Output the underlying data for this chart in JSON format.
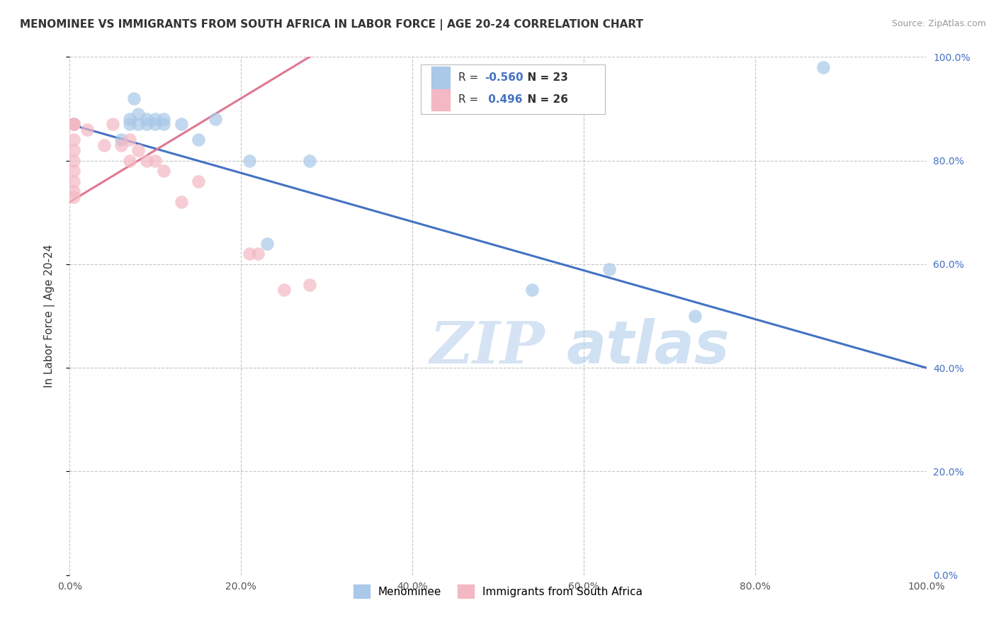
{
  "title": "MENOMINEE VS IMMIGRANTS FROM SOUTH AFRICA IN LABOR FORCE | AGE 20-24 CORRELATION CHART",
  "source": "Source: ZipAtlas.com",
  "ylabel": "In Labor Force | Age 20-24",
  "watermark_zip": "ZIP",
  "watermark_atlas": "atlas",
  "xlim": [
    0.0,
    1.0
  ],
  "ylim": [
    0.0,
    1.0
  ],
  "x_ticks": [
    0.0,
    0.2,
    0.4,
    0.6,
    0.8,
    1.0
  ],
  "y_ticks": [
    0.0,
    0.2,
    0.4,
    0.6,
    0.8,
    1.0
  ],
  "menominee_color": "#a8c8e8",
  "south_africa_color": "#f4b8c4",
  "blue_line_color": "#4472c4",
  "pink_line_color": "#e07890",
  "menominee_R": -0.56,
  "menominee_N": 23,
  "south_africa_R": 0.496,
  "south_africa_N": 26,
  "menominee_x": [
    0.005,
    0.06,
    0.07,
    0.07,
    0.075,
    0.08,
    0.08,
    0.09,
    0.09,
    0.1,
    0.1,
    0.11,
    0.11,
    0.13,
    0.15,
    0.17,
    0.21,
    0.23,
    0.28,
    0.54,
    0.63,
    0.73,
    0.88
  ],
  "menominee_y": [
    0.87,
    0.84,
    0.87,
    0.88,
    0.92,
    0.87,
    0.89,
    0.87,
    0.88,
    0.87,
    0.88,
    0.87,
    0.88,
    0.87,
    0.84,
    0.88,
    0.8,
    0.64,
    0.8,
    0.55,
    0.59,
    0.5,
    0.98
  ],
  "south_africa_x": [
    0.005,
    0.005,
    0.005,
    0.005,
    0.005,
    0.005,
    0.005,
    0.005,
    0.005,
    0.005,
    0.02,
    0.04,
    0.05,
    0.06,
    0.07,
    0.07,
    0.08,
    0.09,
    0.1,
    0.11,
    0.13,
    0.15,
    0.21,
    0.22,
    0.25,
    0.28
  ],
  "south_africa_y": [
    0.87,
    0.87,
    0.87,
    0.84,
    0.82,
    0.8,
    0.78,
    0.76,
    0.74,
    0.73,
    0.86,
    0.83,
    0.87,
    0.83,
    0.84,
    0.8,
    0.82,
    0.8,
    0.8,
    0.78,
    0.72,
    0.76,
    0.62,
    0.62,
    0.55,
    0.56
  ],
  "blue_line_x0": 0.0,
  "blue_line_y0": 0.87,
  "blue_line_x1": 1.0,
  "blue_line_y1": 0.4,
  "pink_line_x0": 0.0,
  "pink_line_y0": 0.72,
  "pink_line_x1": 0.3,
  "pink_line_y1": 1.02,
  "background_color": "#ffffff",
  "grid_color": "#c0c0c0",
  "title_fontsize": 11,
  "axis_label_fontsize": 11,
  "tick_fontsize": 10,
  "right_tick_color": "#4472c4"
}
